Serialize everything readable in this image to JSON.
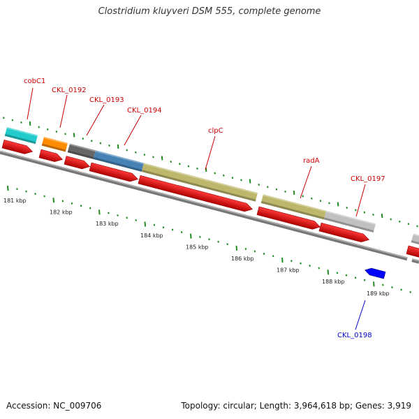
{
  "title": "Clostridium kluyveri DSM 555, complete genome",
  "footer": {
    "accession": "Accession: NC_009706",
    "topology": "Topology: circular; Length: 3,964,618 bp; Genes: 3,919"
  },
  "colors": {
    "cds": "#ff0000",
    "forward_label": "#cc0000",
    "reverse_gene": "#0000ff",
    "reverse_label": "#0000cc",
    "tick": "#228b22",
    "backbone": "#888888"
  },
  "genes": [
    {
      "label": "cobC1",
      "strand": "forward",
      "color": "#22cccc"
    },
    {
      "label": "CKL_0192",
      "strand": "forward",
      "color": "#ff8c00"
    },
    {
      "label": "CKL_0193",
      "strand": "forward",
      "color": "#666666"
    },
    {
      "label": "CKL_0194",
      "strand": "forward",
      "color": "#4682b4"
    },
    {
      "label": "clpC",
      "strand": "forward",
      "color": "#bdb76b"
    },
    {
      "label": "radA",
      "strand": "forward",
      "color": "#bdb76b"
    },
    {
      "label": "CKL_0197",
      "strand": "forward",
      "color": "#c0c0c0"
    },
    {
      "label": "CKL_0198",
      "strand": "reverse",
      "color": "#0000ff"
    }
  ],
  "kbp_ticks": [
    "181 kbp",
    "182 kbp",
    "183 kbp",
    "184 kbp",
    "185 kbp",
    "186 kbp",
    "187 kbp",
    "188 kbp",
    "189 kbp"
  ]
}
